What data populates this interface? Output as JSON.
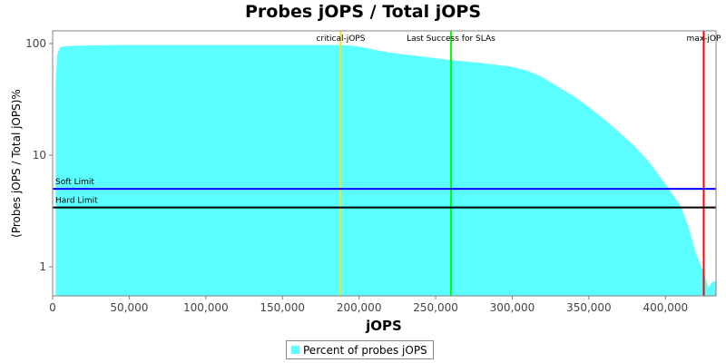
{
  "chart_data": {
    "type": "area",
    "title": "Probes jOPS / Total jOPS",
    "xlabel": "jOPS",
    "ylabel": "(Probes jOPS / Total jOPS)%",
    "x_scale": "linear",
    "y_scale": "log",
    "xlim": [
      0,
      433000
    ],
    "ylim": [
      0.55,
      130
    ],
    "x_ticks": [
      0,
      50000,
      100000,
      150000,
      200000,
      250000,
      300000,
      350000,
      400000
    ],
    "x_tick_labels": [
      "0",
      "50,000",
      "100,000",
      "150,000",
      "200,000",
      "250,000",
      "300,000",
      "350,000",
      "400,000"
    ],
    "y_ticks": [
      1,
      10,
      100
    ],
    "y_tick_labels": [
      "1",
      "10",
      "100"
    ],
    "grid": false,
    "legend_position": "bottom-center",
    "series": [
      {
        "name": "Percent of probes jOPS",
        "color": "#5bffff",
        "x": [
          2000,
          3000,
          5000,
          10000,
          20000,
          40000,
          80000,
          120000,
          160000,
          190000,
          200000,
          210000,
          220000,
          240000,
          260000,
          280000,
          300000,
          310000,
          320000,
          330000,
          340000,
          350000,
          360000,
          370000,
          380000,
          390000,
          400000,
          410000,
          415000,
          420000,
          425000,
          428000,
          430000,
          433000
        ],
        "y": [
          45,
          80,
          93,
          95,
          96,
          97,
          97,
          97,
          97,
          97,
          94,
          88,
          83,
          77,
          71,
          67,
          62,
          57,
          50,
          41,
          34,
          27,
          21,
          16,
          12,
          8.5,
          5.5,
          3.5,
          2.3,
          1.3,
          0.9,
          0.65,
          0.72,
          0.75
        ]
      }
    ],
    "vertical_lines": [
      {
        "label": "critical-jOPS",
        "x": 188000,
        "color": "#f2e233"
      },
      {
        "label": "Last Success for SLAs",
        "x": 260000,
        "color": "#00ff00"
      },
      {
        "label": "max-jOP",
        "x": 425000,
        "color": "#ff0000"
      }
    ],
    "horizontal_lines": [
      {
        "label": "Soft Limit",
        "y": 5,
        "color": "#0000ff"
      },
      {
        "label": "Hard Limit",
        "y": 3.4,
        "color": "#000000"
      }
    ]
  }
}
